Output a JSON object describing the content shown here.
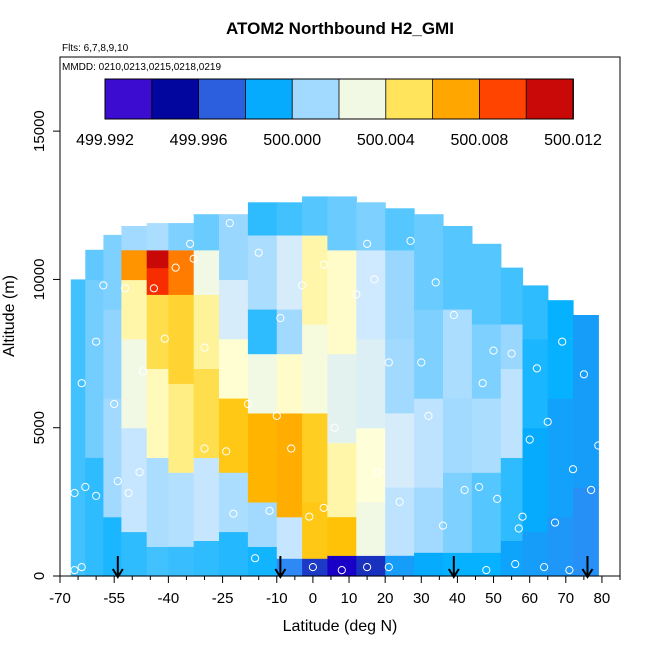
{
  "chart_data": {
    "type": "heatmap",
    "title": "ATOM2 Northbound H2_GMI",
    "flights_label": "Flts: 6,7,8,9,10",
    "dates_label": "MMDD: 0210,0213,0215,0218,0219",
    "xlabel": "Latitude (deg N)",
    "ylabel": "Altitude (m)",
    "xlim": [
      -70,
      85
    ],
    "ylim": [
      0,
      17500
    ],
    "x_ticks": [
      "-70",
      "-55",
      "-40",
      "-25",
      "-10",
      "0",
      "10",
      "20",
      "30",
      "40",
      "50",
      "60",
      "70",
      "80"
    ],
    "y_ticks": [
      "0",
      "5000",
      "10000",
      "15000"
    ],
    "x_tick_values": [
      -70,
      -55,
      -40,
      -25,
      -10,
      0,
      10,
      20,
      30,
      40,
      50,
      60,
      70,
      80
    ],
    "x_minor_ticks": [
      -65,
      -60,
      -50,
      -45,
      -35,
      -30,
      -20,
      -15,
      -5,
      5,
      15,
      25,
      35,
      45,
      55,
      65,
      75,
      85
    ],
    "y_tick_values": [
      0,
      5000,
      10000,
      15000
    ],
    "colorbar": {
      "range": [
        499.992,
        500.012
      ],
      "tick_labels": [
        "499.992",
        "499.996",
        "500.000",
        "500.004",
        "500.008",
        "500.012"
      ],
      "tick_values": [
        499.992,
        499.996,
        500.0,
        500.004,
        500.008,
        500.012
      ],
      "colors": [
        "#8a2be2",
        "#1a00c8",
        "#000099",
        "#1e3ec8",
        "#3a7ff2",
        "#00b0ff",
        "#8fd4ff",
        "#cfe9ff",
        "#ffffd8",
        "#ffe866",
        "#ffc000",
        "#ff8c00",
        "#ff3c00",
        "#dd0000",
        "#9b1c1c"
      ]
    },
    "columns": [
      {
        "x": [
          -67,
          -63
        ],
        "ytop": 10000,
        "bands": [
          [
            0,
            10000,
            499.9998
          ]
        ]
      },
      {
        "x": [
          -63,
          -58
        ],
        "ytop": 11000,
        "bands": [
          [
            0,
            4000,
            499.9996
          ],
          [
            4000,
            10000,
            500.0003
          ],
          [
            10000,
            11000,
            500.0001
          ]
        ]
      },
      {
        "x": [
          -58,
          -53
        ],
        "ytop": 11500,
        "bands": [
          [
            0,
            2000,
            499.9994
          ],
          [
            2000,
            6000,
            500.001
          ],
          [
            6000,
            9000,
            500.0006
          ],
          [
            9000,
            11500,
            500.0004
          ]
        ]
      },
      {
        "x": [
          -53,
          -46
        ],
        "ytop": 11800,
        "bands": [
          [
            0,
            1500,
            499.9996
          ],
          [
            1500,
            5000,
            500.0018
          ],
          [
            5000,
            8000,
            500.003
          ],
          [
            8000,
            10000,
            500.004
          ],
          [
            10000,
            11000,
            500.0075
          ],
          [
            11000,
            11800,
            500.001
          ]
        ]
      },
      {
        "x": [
          -46,
          -40
        ],
        "ytop": 11900,
        "bands": [
          [
            0,
            1000,
            499.9998
          ],
          [
            1000,
            4000,
            500.0012
          ],
          [
            4000,
            7000,
            500.0038
          ],
          [
            7000,
            9500,
            500.0052
          ],
          [
            9500,
            10400,
            500.0095
          ],
          [
            10400,
            11000,
            500.011
          ],
          [
            11000,
            11900,
            500.0012
          ]
        ]
      },
      {
        "x": [
          -40,
          -33
        ],
        "ytop": 11900,
        "bands": [
          [
            0,
            1000,
            499.9997
          ],
          [
            1000,
            3500,
            500.0014
          ],
          [
            3500,
            6500,
            500.0045
          ],
          [
            6500,
            9500,
            500.0056
          ],
          [
            9500,
            11000,
            500.008
          ],
          [
            11000,
            11900,
            500.0004
          ]
        ]
      },
      {
        "x": [
          -33,
          -26
        ],
        "ytop": 12200,
        "bands": [
          [
            0,
            1200,
            499.9996
          ],
          [
            1200,
            4000,
            500.0018
          ],
          [
            4000,
            7000,
            500.0052
          ],
          [
            7000,
            9500,
            500.0042
          ],
          [
            9500,
            11000,
            500.003
          ],
          [
            11000,
            12200,
            500.0002
          ]
        ]
      },
      {
        "x": [
          -26,
          -18
        ],
        "ytop": 12200,
        "bands": [
          [
            0,
            1500,
            499.9995
          ],
          [
            1500,
            3500,
            500.0012
          ],
          [
            3500,
            6000,
            500.006
          ],
          [
            6000,
            8000,
            500.0035
          ],
          [
            8000,
            10000,
            500.0022
          ],
          [
            10000,
            12200,
            500.0008
          ]
        ]
      },
      {
        "x": [
          -18,
          -10
        ],
        "ytop": 12600,
        "bands": [
          [
            0,
            1000,
            499.9993
          ],
          [
            1000,
            2500,
            500.001
          ],
          [
            2500,
            5500,
            500.0066
          ],
          [
            5500,
            7500,
            500.003
          ],
          [
            7500,
            9000,
            499.9996
          ],
          [
            9000,
            11500,
            500.0012
          ],
          [
            11500,
            12600,
            499.9996
          ]
        ]
      },
      {
        "x": [
          -10,
          -3
        ],
        "ytop": 12600,
        "bands": [
          [
            0,
            600,
            499.998
          ],
          [
            600,
            2000,
            500.0018
          ],
          [
            2000,
            5500,
            500.0068
          ],
          [
            5500,
            7500,
            500.0036
          ],
          [
            7500,
            9000,
            500.001
          ],
          [
            9000,
            11500,
            500.0022
          ],
          [
            11500,
            12600,
            499.9998
          ]
        ]
      },
      {
        "x": [
          -3,
          4
        ],
        "ytop": 12800,
        "bands": [
          [
            0,
            600,
            499.9962
          ],
          [
            600,
            2500,
            500.006
          ],
          [
            2500,
            5500,
            500.0058
          ],
          [
            5500,
            8500,
            500.0032
          ],
          [
            8500,
            11500,
            500.004
          ],
          [
            11500,
            12800,
            500.0
          ]
        ]
      },
      {
        "x": [
          4,
          12
        ],
        "ytop": 12800,
        "bands": [
          [
            0,
            700,
            499.9935
          ],
          [
            700,
            2000,
            500.0062
          ],
          [
            2000,
            4500,
            500.004
          ],
          [
            4500,
            7500,
            500.0026
          ],
          [
            7500,
            11000,
            500.0036
          ],
          [
            11000,
            12800,
            500.0002
          ]
        ]
      },
      {
        "x": [
          12,
          20
        ],
        "ytop": 12600,
        "bands": [
          [
            0,
            700,
            499.996
          ],
          [
            700,
            2500,
            500.003
          ],
          [
            2500,
            5000,
            500.0034
          ],
          [
            5000,
            8000,
            500.0024
          ],
          [
            8000,
            11000,
            500.002
          ],
          [
            11000,
            12600,
            500.0004
          ]
        ]
      },
      {
        "x": [
          20,
          28
        ],
        "ytop": 12400,
        "bands": [
          [
            0,
            700,
            499.9986
          ],
          [
            700,
            3000,
            500.0016
          ],
          [
            3000,
            5500,
            500.0022
          ],
          [
            5500,
            8000,
            500.001
          ],
          [
            8000,
            11000,
            500.0008
          ],
          [
            11000,
            12400,
            500.0
          ]
        ]
      },
      {
        "x": [
          28,
          36
        ],
        "ytop": 12200,
        "bands": [
          [
            0,
            800,
            499.999
          ],
          [
            800,
            3000,
            500.001
          ],
          [
            3000,
            6000,
            500.0016
          ],
          [
            6000,
            9000,
            500.0004
          ],
          [
            9000,
            12200,
            500.0002
          ]
        ]
      },
      {
        "x": [
          36,
          44
        ],
        "ytop": 11800,
        "bands": [
          [
            0,
            800,
            499.9992
          ],
          [
            800,
            3500,
            500.0004
          ],
          [
            3500,
            6000,
            500.001
          ],
          [
            6000,
            9000,
            500.0012
          ],
          [
            9000,
            11800,
            500.0
          ]
        ]
      },
      {
        "x": [
          44,
          52
        ],
        "ytop": 11200,
        "bands": [
          [
            0,
            800,
            499.9992
          ],
          [
            800,
            3500,
            500.0
          ],
          [
            3500,
            6000,
            500.0012
          ],
          [
            6000,
            8500,
            500.0004
          ],
          [
            8500,
            11200,
            500.0
          ]
        ]
      },
      {
        "x": [
          52,
          58
        ],
        "ytop": 10400,
        "bands": [
          [
            0,
            1200,
            499.9988
          ],
          [
            1200,
            4000,
            499.9996
          ],
          [
            4000,
            7000,
            500.0016
          ],
          [
            7000,
            8500,
            500.0008
          ],
          [
            8500,
            10400,
            499.9998
          ]
        ]
      },
      {
        "x": [
          58,
          65
        ],
        "ytop": 9800,
        "bands": [
          [
            0,
            1500,
            499.9986
          ],
          [
            1500,
            5000,
            499.999
          ],
          [
            5000,
            8000,
            499.9994
          ],
          [
            8000,
            9800,
            499.9996
          ]
        ]
      },
      {
        "x": [
          65,
          72
        ],
        "ytop": 9300,
        "bands": [
          [
            0,
            2000,
            499.9984
          ],
          [
            2000,
            6000,
            499.9987
          ],
          [
            6000,
            9300,
            499.9992
          ]
        ]
      },
      {
        "x": [
          72,
          79
        ],
        "ytop": 8800,
        "bands": [
          [
            0,
            3000,
            499.9982
          ],
          [
            3000,
            8800,
            499.9986
          ]
        ]
      }
    ],
    "samples": [
      [
        -66,
        200
      ],
      [
        -64,
        300
      ],
      [
        -63,
        3000
      ],
      [
        -66,
        2800
      ],
      [
        -60,
        2700
      ],
      [
        -64,
        6500
      ],
      [
        -60,
        7900
      ],
      [
        -58,
        9800
      ],
      [
        -54,
        3200
      ],
      [
        -51,
        2800
      ],
      [
        -52,
        9700
      ],
      [
        -48,
        3500
      ],
      [
        -44,
        9700
      ],
      [
        -38,
        10400
      ],
      [
        -41,
        8000
      ],
      [
        -34,
        11200
      ],
      [
        -33,
        10700
      ],
      [
        -30,
        7700
      ],
      [
        -30,
        4300
      ],
      [
        -23,
        11900
      ],
      [
        -24,
        4200
      ],
      [
        -22,
        2100
      ],
      [
        -18,
        5800
      ],
      [
        -15,
        10900
      ],
      [
        -12,
        2200
      ],
      [
        -9,
        8700
      ],
      [
        -10,
        5400
      ],
      [
        -6,
        4300
      ],
      [
        -3,
        9800
      ],
      [
        -1,
        2000
      ],
      [
        3,
        10500
      ],
      [
        3,
        2300
      ],
      [
        6,
        5000
      ],
      [
        8,
        200
      ],
      [
        12,
        9500
      ],
      [
        15,
        11200
      ],
      [
        17,
        10000
      ],
      [
        18,
        3500
      ],
      [
        21,
        7200
      ],
      [
        24,
        2500
      ],
      [
        27,
        11300
      ],
      [
        30,
        7200
      ],
      [
        32,
        5400
      ],
      [
        34,
        9900
      ],
      [
        36,
        1700
      ],
      [
        39,
        8800
      ],
      [
        42,
        2900
      ],
      [
        46,
        3000
      ],
      [
        47,
        6500
      ],
      [
        50,
        7600
      ],
      [
        51,
        2600
      ],
      [
        55,
        7500
      ],
      [
        57,
        1600
      ],
      [
        58,
        2000
      ],
      [
        60,
        4600
      ],
      [
        62,
        7000
      ],
      [
        65,
        5200
      ],
      [
        67,
        1800
      ],
      [
        69,
        7900
      ],
      [
        72,
        3600
      ],
      [
        75,
        6800
      ],
      [
        77,
        2900
      ],
      [
        79,
        4400
      ],
      [
        -55,
        5800
      ],
      [
        -47,
        6900
      ],
      [
        -16,
        600
      ],
      [
        0,
        300
      ],
      [
        15,
        300
      ],
      [
        21,
        300
      ],
      [
        48,
        200
      ],
      [
        56,
        400
      ],
      [
        64,
        300
      ],
      [
        71,
        200
      ]
    ],
    "flight_markers": [
      -54,
      -9,
      39,
      76
    ]
  }
}
